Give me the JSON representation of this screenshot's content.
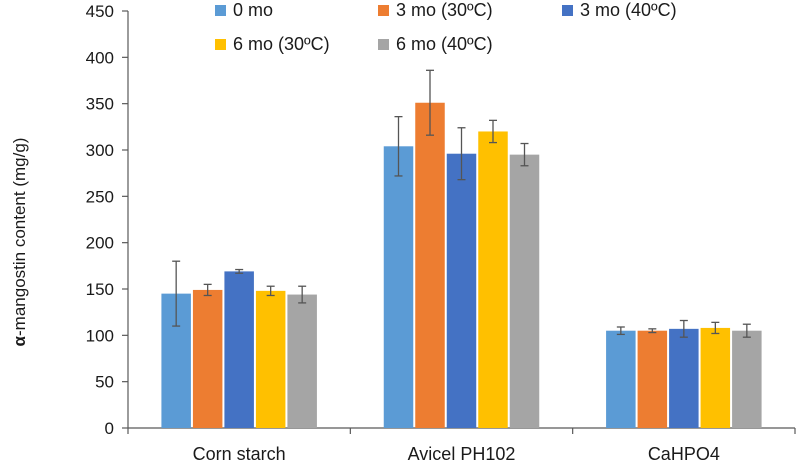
{
  "chart_data": {
    "type": "bar",
    "title": "",
    "xlabel": "",
    "ylabel_symbol": "α",
    "ylabel_rest": "-mangostin content (mg/g)",
    "ylim": [
      0,
      450
    ],
    "yticks": [
      0,
      50,
      100,
      150,
      200,
      250,
      300,
      350,
      400,
      450
    ],
    "grid": false,
    "legend_position": "top",
    "categories": [
      "Corn starch",
      "Avicel PH102",
      "CaHPO4"
    ],
    "series": [
      {
        "name": "0 mo",
        "color": "#5B9BD5",
        "values": [
          145,
          304,
          105
        ],
        "errors": [
          35,
          32,
          4
        ]
      },
      {
        "name": "3 mo (30ºC)",
        "color": "#ED7D31",
        "values": [
          149,
          351,
          105
        ],
        "errors": [
          6,
          35,
          2
        ]
      },
      {
        "name": "3 mo (40ºC)",
        "color": "#4472C4",
        "values": [
          169,
          296,
          107
        ],
        "errors": [
          2,
          28,
          9
        ]
      },
      {
        "name": "6 mo (30ºC)",
        "color": "#FFC000",
        "values": [
          148,
          320,
          108
        ],
        "errors": [
          5,
          12,
          6
        ]
      },
      {
        "name": "6 mo (40ºC)",
        "color": "#A5A5A5",
        "values": [
          144,
          295,
          105
        ],
        "errors": [
          9,
          12,
          7
        ]
      }
    ]
  }
}
